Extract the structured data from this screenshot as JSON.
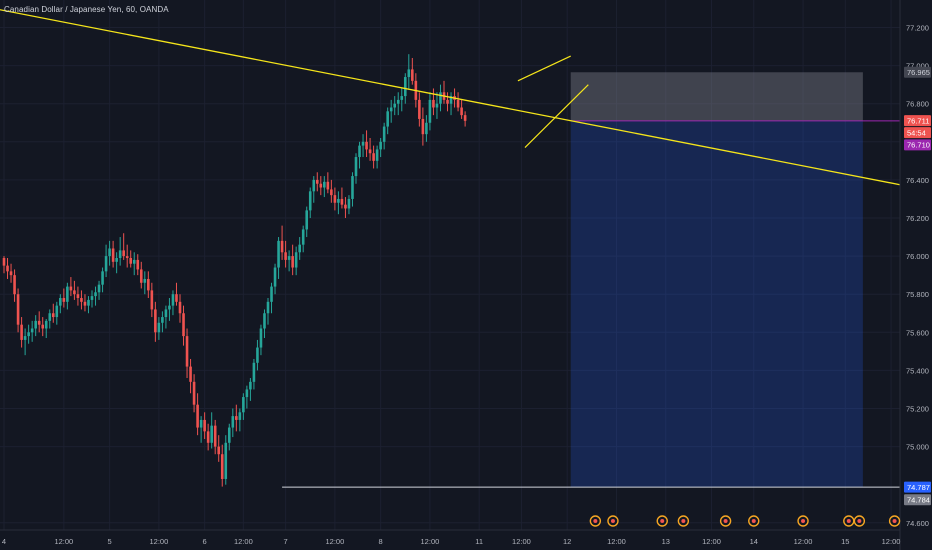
{
  "header": {
    "title": "Canadian Dollar / Japanese Yen, 60, OANDA"
  },
  "colors": {
    "background": "#131722",
    "up": "#26a69a",
    "down": "#ef5350",
    "trendline": "#f5e51a",
    "stop_zone": "rgba(120,123,134,0.45)",
    "profit_zone": "rgba(41,98,255,0.22)",
    "entry_line": "#9c27b0",
    "support_line": "#d1d4dc"
  },
  "chart_data": {
    "type": "candlestick",
    "symbol": "CADJPY",
    "timeframe": "60",
    "x_ticks": [
      "4",
      "12:00",
      "5",
      "12:00",
      "6",
      "12:00",
      "7",
      "12:00",
      "8",
      "12:00",
      "11",
      "12:00",
      "12",
      "12:00",
      "13",
      "12:00",
      "14",
      "12:00",
      "15",
      "12:00"
    ],
    "y_ticks": [
      "77.200",
      "77.000",
      "76.800",
      "76.600",
      "76.400",
      "76.200",
      "76.000",
      "75.800",
      "75.600",
      "75.400",
      "75.200",
      "75.000",
      "74.600"
    ],
    "ylim": [
      74.6,
      77.32
    ],
    "price_labels": {
      "stop": "76.965",
      "current": "76.711",
      "countdown": "54:54",
      "entry": "76.710",
      "target": "74.787",
      "target_alt": "74.784"
    },
    "candles": [
      [
        75.99,
        76.0,
        75.91,
        75.95
      ],
      [
        75.95,
        75.99,
        75.88,
        75.92
      ],
      [
        75.92,
        75.96,
        75.86,
        75.9
      ],
      [
        75.9,
        75.93,
        75.76,
        75.8
      ],
      [
        75.8,
        75.83,
        75.6,
        75.64
      ],
      [
        75.64,
        75.68,
        75.52,
        75.56
      ],
      [
        75.56,
        75.62,
        75.48,
        75.58
      ],
      [
        75.58,
        75.64,
        75.54,
        75.6
      ],
      [
        75.6,
        75.66,
        75.55,
        75.62
      ],
      [
        75.62,
        75.69,
        75.58,
        75.66
      ],
      [
        75.66,
        75.71,
        75.6,
        75.64
      ],
      [
        75.64,
        75.68,
        75.58,
        75.62
      ],
      [
        75.62,
        75.67,
        75.57,
        75.66
      ],
      [
        75.66,
        75.72,
        75.62,
        75.7
      ],
      [
        75.7,
        75.75,
        75.65,
        75.68
      ],
      [
        75.68,
        75.76,
        75.64,
        75.74
      ],
      [
        75.74,
        75.8,
        75.7,
        75.78
      ],
      [
        75.78,
        75.83,
        75.73,
        75.76
      ],
      [
        75.76,
        75.86,
        75.72,
        75.84
      ],
      [
        75.84,
        75.89,
        75.79,
        75.82
      ],
      [
        75.82,
        75.87,
        75.77,
        75.8
      ],
      [
        75.8,
        75.84,
        75.74,
        75.78
      ],
      [
        75.78,
        75.82,
        75.72,
        75.76
      ],
      [
        75.76,
        75.8,
        75.71,
        75.74
      ],
      [
        75.74,
        75.79,
        75.7,
        75.77
      ],
      [
        75.77,
        75.82,
        75.73,
        75.79
      ],
      [
        75.79,
        75.84,
        75.74,
        75.81
      ],
      [
        75.81,
        75.87,
        75.77,
        75.85
      ],
      [
        75.85,
        75.94,
        75.81,
        75.92
      ],
      [
        75.92,
        76.06,
        75.89,
        76.0
      ],
      [
        76.0,
        76.08,
        75.95,
        76.04
      ],
      [
        76.04,
        76.08,
        75.94,
        75.97
      ],
      [
        75.97,
        76.02,
        75.91,
        75.99
      ],
      [
        75.99,
        76.1,
        75.95,
        76.03
      ],
      [
        76.03,
        76.12,
        75.98,
        76.0
      ],
      [
        76.0,
        76.06,
        75.94,
        75.99
      ],
      [
        75.99,
        76.03,
        75.94,
        75.96
      ],
      [
        75.96,
        76.02,
        75.9,
        75.98
      ],
      [
        75.98,
        76.01,
        75.9,
        75.93
      ],
      [
        75.93,
        75.97,
        75.83,
        75.86
      ],
      [
        75.86,
        75.92,
        75.8,
        75.88
      ],
      [
        75.88,
        75.92,
        75.78,
        75.82
      ],
      [
        75.82,
        75.86,
        75.68,
        75.72
      ],
      [
        75.72,
        75.76,
        75.55,
        75.6
      ],
      [
        75.6,
        75.68,
        75.56,
        75.65
      ],
      [
        75.65,
        75.71,
        75.6,
        75.68
      ],
      [
        75.68,
        75.74,
        75.62,
        75.72
      ],
      [
        75.72,
        75.78,
        75.66,
        75.74
      ],
      [
        75.74,
        75.82,
        75.69,
        75.8
      ],
      [
        75.8,
        75.86,
        75.74,
        75.76
      ],
      [
        75.76,
        75.8,
        75.65,
        75.7
      ],
      [
        75.7,
        75.74,
        75.53,
        75.58
      ],
      [
        75.58,
        75.62,
        75.36,
        75.42
      ],
      [
        75.42,
        75.46,
        75.28,
        75.34
      ],
      [
        75.34,
        75.38,
        75.18,
        75.22
      ],
      [
        75.22,
        75.28,
        75.06,
        75.1
      ],
      [
        75.1,
        75.16,
        75.02,
        75.14
      ],
      [
        75.14,
        75.18,
        75.04,
        75.08
      ],
      [
        75.08,
        75.12,
        74.98,
        75.02
      ],
      [
        75.02,
        75.18,
        74.99,
        75.11
      ],
      [
        75.11,
        75.14,
        74.96,
        75.0
      ],
      [
        75.0,
        75.06,
        74.92,
        74.96
      ],
      [
        74.96,
        75.01,
        74.79,
        74.83
      ],
      [
        74.83,
        75.06,
        74.8,
        75.02
      ],
      [
        75.02,
        75.12,
        74.98,
        75.1
      ],
      [
        75.1,
        75.2,
        75.05,
        75.16
      ],
      [
        75.16,
        75.22,
        75.08,
        75.14
      ],
      [
        75.14,
        75.2,
        75.08,
        75.18
      ],
      [
        75.18,
        75.28,
        75.14,
        75.26
      ],
      [
        75.26,
        75.32,
        75.2,
        75.3
      ],
      [
        75.3,
        75.36,
        75.24,
        75.34
      ],
      [
        75.34,
        75.46,
        75.3,
        75.44
      ],
      [
        75.44,
        75.56,
        75.4,
        75.52
      ],
      [
        75.52,
        75.64,
        75.48,
        75.62
      ],
      [
        75.62,
        75.72,
        75.57,
        75.7
      ],
      [
        75.7,
        75.78,
        75.64,
        75.76
      ],
      [
        75.76,
        75.86,
        75.7,
        75.84
      ],
      [
        75.84,
        75.96,
        75.8,
        75.94
      ],
      [
        75.94,
        76.1,
        75.88,
        76.08
      ],
      [
        76.08,
        76.16,
        75.98,
        76.02
      ],
      [
        76.02,
        76.08,
        75.94,
        75.98
      ],
      [
        75.98,
        76.03,
        75.92,
        76.0
      ],
      [
        76.0,
        76.06,
        75.9,
        75.94
      ],
      [
        75.94,
        76.05,
        75.9,
        76.02
      ],
      [
        76.02,
        76.1,
        75.98,
        76.06
      ],
      [
        76.06,
        76.16,
        76.02,
        76.14
      ],
      [
        76.14,
        76.26,
        76.1,
        76.24
      ],
      [
        76.24,
        76.36,
        76.2,
        76.34
      ],
      [
        76.34,
        76.42,
        76.28,
        76.4
      ],
      [
        76.4,
        76.44,
        76.34,
        76.38
      ],
      [
        76.38,
        76.42,
        76.32,
        76.36
      ],
      [
        76.36,
        76.42,
        76.31,
        76.39
      ],
      [
        76.39,
        76.44,
        76.33,
        76.35
      ],
      [
        76.35,
        76.4,
        76.28,
        76.32
      ],
      [
        76.32,
        76.36,
        76.24,
        76.28
      ],
      [
        76.28,
        76.34,
        76.22,
        76.3
      ],
      [
        76.3,
        76.36,
        76.25,
        76.27
      ],
      [
        76.27,
        76.31,
        76.2,
        76.25
      ],
      [
        76.25,
        76.32,
        76.22,
        76.3
      ],
      [
        76.3,
        76.44,
        76.26,
        76.42
      ],
      [
        76.42,
        76.54,
        76.38,
        76.52
      ],
      [
        76.52,
        76.6,
        76.46,
        76.58
      ],
      [
        76.58,
        76.64,
        76.52,
        76.6
      ],
      [
        76.6,
        76.66,
        76.52,
        76.56
      ],
      [
        76.56,
        76.62,
        76.5,
        76.54
      ],
      [
        76.54,
        76.58,
        76.46,
        76.5
      ],
      [
        76.5,
        76.58,
        76.46,
        76.56
      ],
      [
        76.56,
        76.62,
        76.52,
        76.6
      ],
      [
        76.6,
        76.7,
        76.56,
        76.68
      ],
      [
        76.68,
        76.78,
        76.64,
        76.76
      ],
      [
        76.76,
        76.82,
        76.7,
        76.78
      ],
      [
        76.78,
        76.84,
        76.74,
        76.8
      ],
      [
        76.8,
        76.86,
        76.74,
        76.82
      ],
      [
        76.82,
        76.88,
        76.76,
        76.84
      ],
      [
        76.84,
        76.96,
        76.8,
        76.94
      ],
      [
        76.94,
        77.06,
        76.88,
        76.98
      ],
      [
        76.98,
        77.04,
        76.9,
        76.92
      ],
      [
        76.92,
        76.96,
        76.78,
        76.82
      ],
      [
        76.82,
        76.86,
        76.68,
        76.72
      ],
      [
        76.72,
        76.78,
        76.58,
        76.64
      ],
      [
        76.64,
        76.74,
        76.6,
        76.7
      ],
      [
        76.7,
        76.86,
        76.66,
        76.82
      ],
      [
        76.82,
        76.88,
        76.74,
        76.78
      ],
      [
        76.78,
        76.86,
        76.72,
        76.8
      ],
      [
        76.8,
        76.9,
        76.76,
        76.86
      ],
      [
        76.86,
        76.92,
        76.8,
        76.82
      ],
      [
        76.82,
        76.86,
        76.76,
        76.8
      ],
      [
        76.8,
        76.86,
        76.74,
        76.84
      ],
      [
        76.84,
        76.88,
        76.78,
        76.82
      ],
      [
        76.82,
        76.86,
        76.76,
        76.78
      ],
      [
        76.78,
        76.82,
        76.72,
        76.74
      ],
      [
        76.74,
        76.76,
        76.68,
        76.71
      ]
    ]
  },
  "drawings": {
    "main_trendline": {
      "from": [
        -3,
        77.3
      ],
      "to": [
        164,
        76.7
      ]
    },
    "support_line": {
      "from": [
        79,
        74.787
      ],
      "to": [
        300,
        74.787
      ]
    },
    "position": {
      "entry": 76.71,
      "stop": 76.965,
      "target": 74.787,
      "start_index": 161,
      "end_index": 244
    },
    "wedge_upper": {
      "from": [
        146,
        76.92
      ],
      "to": [
        161,
        77.05
      ]
    },
    "wedge_lower": {
      "from": [
        148,
        76.57
      ],
      "to": [
        166,
        76.9
      ]
    }
  },
  "event_markers": [
    {
      "index": 168,
      "icon": "flag-icon"
    },
    {
      "index": 173,
      "icon": "alert-icon"
    },
    {
      "index": 187,
      "icon": "flag-icon"
    },
    {
      "index": 193,
      "icon": "alert-icon"
    },
    {
      "index": 205,
      "icon": "alert-icon"
    },
    {
      "index": 213,
      "icon": "flag-icon"
    },
    {
      "index": 227,
      "icon": "alert-icon"
    },
    {
      "index": 240,
      "icon": "flag-icon"
    },
    {
      "index": 243,
      "icon": "flag-icon"
    },
    {
      "index": 253,
      "icon": "flag-icon"
    }
  ]
}
